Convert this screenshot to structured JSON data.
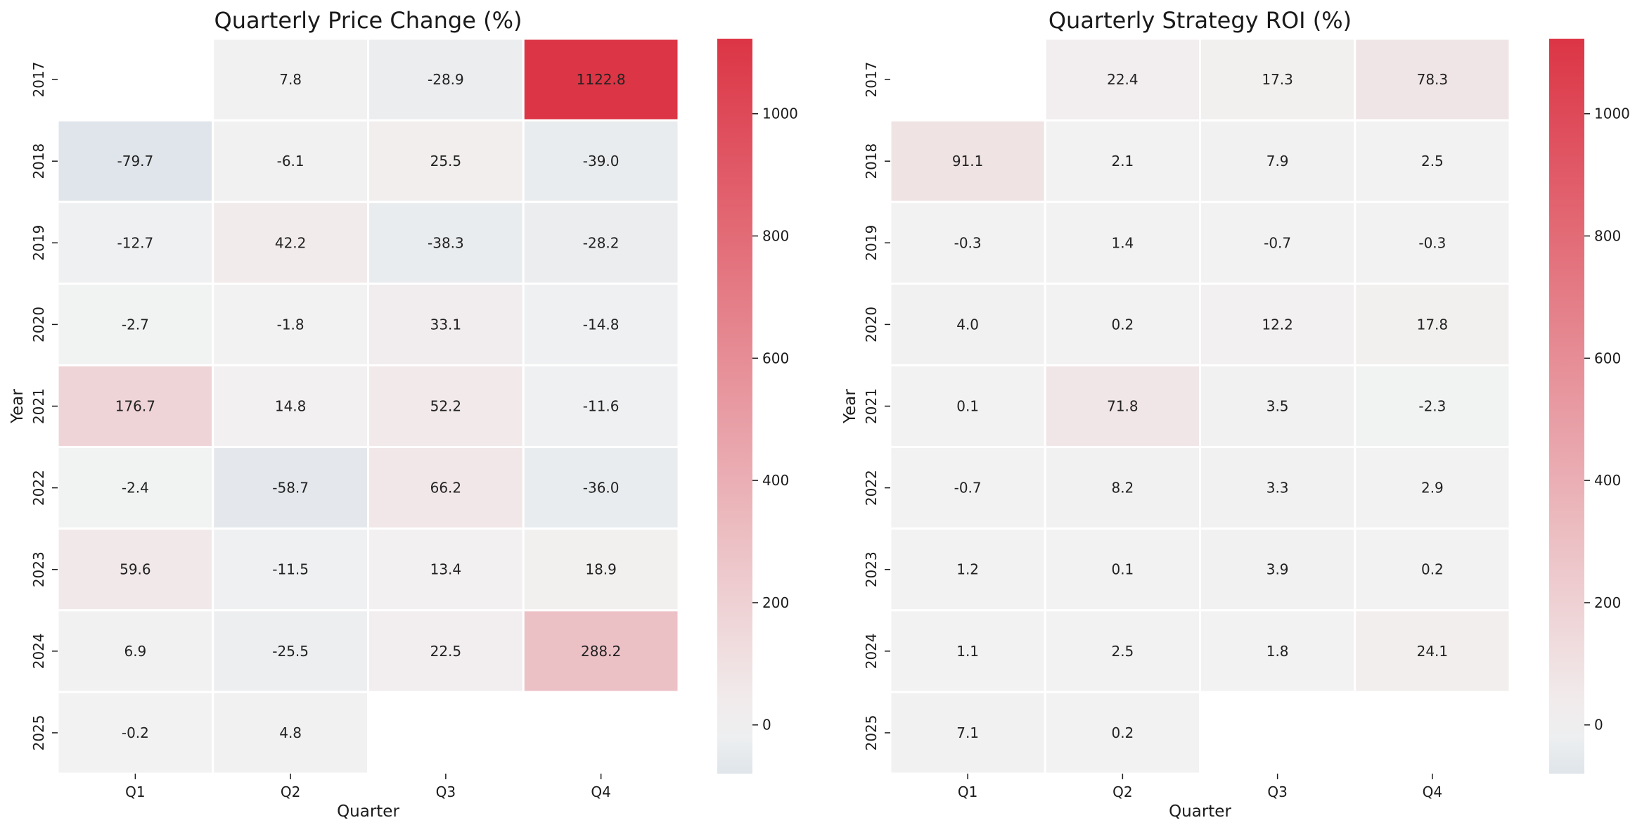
{
  "chart_data": [
    {
      "type": "heatmap",
      "title": "Quarterly Price Change (%)",
      "xlabel": "Quarter",
      "ylabel": "Year",
      "x_categories": [
        "Q1",
        "Q2",
        "Q3",
        "Q4"
      ],
      "y_categories": [
        "2017",
        "2018",
        "2019",
        "2020",
        "2021",
        "2022",
        "2023",
        "2024",
        "2025"
      ],
      "values": [
        [
          null,
          7.8,
          -28.9,
          1122.8
        ],
        [
          -79.7,
          -6.1,
          25.5,
          -39.0
        ],
        [
          -12.7,
          42.2,
          -38.3,
          -28.2
        ],
        [
          -2.7,
          -1.8,
          33.1,
          -14.8
        ],
        [
          176.7,
          14.8,
          52.2,
          -11.6
        ],
        [
          -2.4,
          -58.7,
          66.2,
          -36.0
        ],
        [
          59.6,
          -11.5,
          13.4,
          18.9
        ],
        [
          6.9,
          -25.5,
          22.5,
          288.2
        ],
        [
          -0.2,
          4.8,
          null,
          null
        ]
      ],
      "colorbar": {
        "range": [
          -79.7,
          1122.8
        ],
        "center": 0,
        "ticks": [
          0,
          200,
          400,
          600,
          800,
          1000
        ]
      },
      "colors": {
        "negative": "#dfe5ea",
        "center": "#f2f2f2",
        "positive": "#dc3545"
      }
    },
    {
      "type": "heatmap",
      "title": "Quarterly Strategy ROI (%)",
      "xlabel": "Quarter",
      "ylabel": "Year",
      "x_categories": [
        "Q1",
        "Q2",
        "Q3",
        "Q4"
      ],
      "y_categories": [
        "2017",
        "2018",
        "2019",
        "2020",
        "2021",
        "2022",
        "2023",
        "2024",
        "2025"
      ],
      "values": [
        [
          null,
          22.4,
          17.3,
          78.3
        ],
        [
          91.1,
          2.1,
          7.9,
          2.5
        ],
        [
          -0.3,
          1.4,
          -0.7,
          -0.3
        ],
        [
          4.0,
          0.2,
          12.2,
          17.8
        ],
        [
          0.1,
          71.8,
          3.5,
          -2.3
        ],
        [
          -0.7,
          8.2,
          3.3,
          2.9
        ],
        [
          1.2,
          0.1,
          3.9,
          0.2
        ],
        [
          1.1,
          2.5,
          1.8,
          24.1
        ],
        [
          7.1,
          0.2,
          null,
          null
        ]
      ],
      "colorbar": {
        "range": [
          -79.7,
          1122.8
        ],
        "center": 0,
        "ticks": [
          0,
          200,
          400,
          600,
          800,
          1000
        ]
      },
      "colors": {
        "negative": "#dfe5ea",
        "center": "#f2f2f2",
        "positive": "#dc3545"
      }
    }
  ]
}
